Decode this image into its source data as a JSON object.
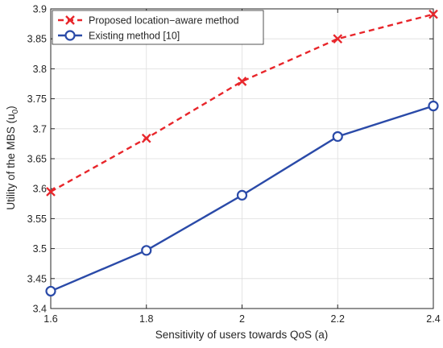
{
  "chart_data": {
    "type": "line",
    "title": "",
    "xlabel": "Sensitivity of users towards QoS (a)",
    "ylabel_main": "Utility of the MBS (u",
    "ylabel_sub": "0",
    "ylabel_close": ")",
    "xlim": [
      1.6,
      2.4
    ],
    "ylim": [
      3.4,
      3.9
    ],
    "xticks": [
      1.6,
      1.8,
      2.0,
      2.2,
      2.4
    ],
    "xtick_labels": [
      "1.6",
      "1.8",
      "2",
      "2.2",
      "2.4"
    ],
    "yticks": [
      3.4,
      3.45,
      3.5,
      3.55,
      3.6,
      3.65,
      3.7,
      3.75,
      3.8,
      3.85,
      3.9
    ],
    "ytick_labels": [
      "3.4",
      "3.45",
      "3.5",
      "3.55",
      "3.6",
      "3.65",
      "3.7",
      "3.75",
      "3.8",
      "3.85",
      "3.9"
    ],
    "grid": true,
    "legend_position": "top-left",
    "x": [
      1.6,
      1.8,
      2.0,
      2.2,
      2.4
    ],
    "series": [
      {
        "name": "Proposed location−aware method",
        "values": [
          3.595,
          3.684,
          3.779,
          3.85,
          3.891
        ],
        "color": "#e8262b",
        "line_style": "dashed",
        "marker": "x"
      },
      {
        "name": "Existing method [10]",
        "values": [
          3.429,
          3.497,
          3.589,
          3.687,
          3.738
        ],
        "color": "#2a4aa8",
        "line_style": "solid",
        "marker": "o"
      }
    ]
  }
}
